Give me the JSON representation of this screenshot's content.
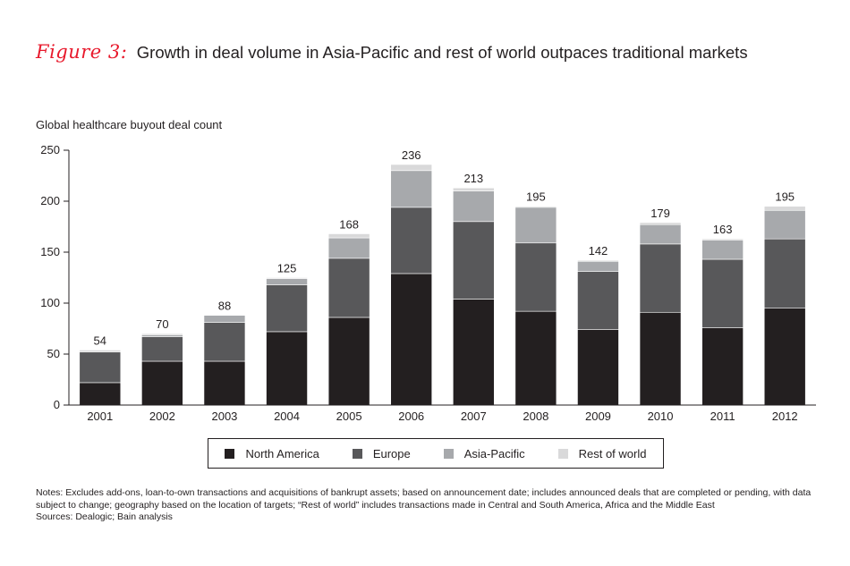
{
  "figure": {
    "label": "Figure 3:",
    "title": "Growth in deal volume in Asia-Pacific and rest of world outpaces traditional markets"
  },
  "chart_data": {
    "type": "stacked-bar",
    "ylabel": "Global healthcare buyout deal count",
    "ylim": [
      0,
      250
    ],
    "yticks": [
      0,
      50,
      100,
      150,
      200,
      250
    ],
    "categories": [
      "2001",
      "2002",
      "2003",
      "2004",
      "2005",
      "2006",
      "2007",
      "2008",
      "2009",
      "2010",
      "2011",
      "2012"
    ],
    "series": [
      {
        "name": "North America",
        "color": "#231f20",
        "values": [
          22,
          43,
          43,
          72,
          86,
          129,
          104,
          92,
          74,
          91,
          76,
          95
        ]
      },
      {
        "name": "Europe",
        "color": "#58585a",
        "values": [
          30,
          24,
          38,
          46,
          58,
          65,
          76,
          67,
          57,
          67,
          67,
          68
        ]
      },
      {
        "name": "Asia-Pacific",
        "color": "#a7a9ac",
        "values": [
          0,
          2,
          7,
          6,
          20,
          36,
          30,
          35,
          10,
          19,
          19,
          28
        ]
      },
      {
        "name": "Rest of world",
        "color": "#d9d9da",
        "values": [
          2,
          1,
          0,
          1,
          4,
          6,
          3,
          1,
          1,
          2,
          1,
          4
        ]
      }
    ],
    "totals": [
      54,
      70,
      88,
      125,
      168,
      236,
      213,
      195,
      142,
      179,
      163,
      195
    ]
  },
  "notes": [
    "Notes: Excludes add-ons, loan-to-own transactions and acquisitions of bankrupt assets; based on announcement date; includes announced deals that are completed or pending, with data subject to change; geography based on the location of targets; “Rest of world” includes transactions made in Central and South America, Africa and the Middle East",
    "Sources: Dealogic; Bain analysis"
  ]
}
